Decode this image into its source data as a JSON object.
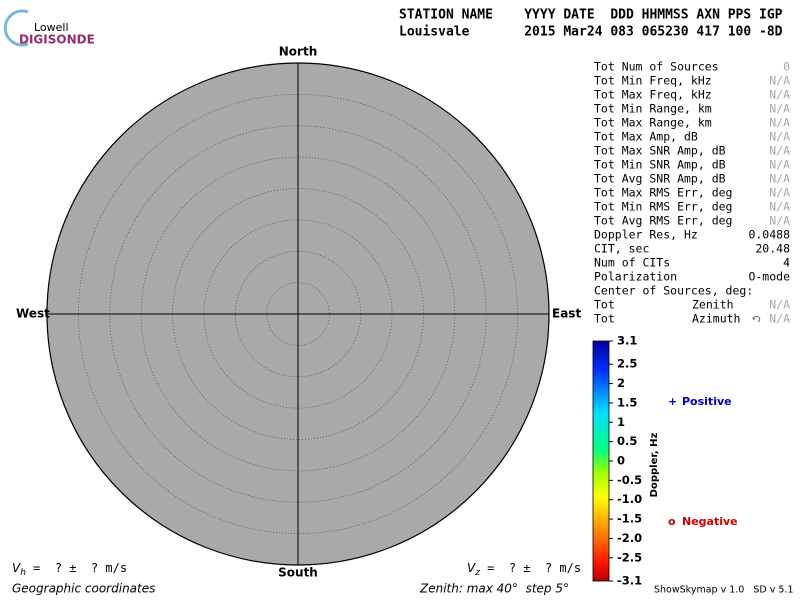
{
  "logo": {
    "top": "Lowell",
    "bottom": "DIGISONDE"
  },
  "header": {
    "line1": "STATION NAME    YYYY DATE  DDD HHMMSS AXN PPS IGP",
    "line2": "Louisvale       2015 Mar24 083 065230 417 100 -8D"
  },
  "compass": {
    "north": "North",
    "south": "South",
    "west": "West",
    "east": "East"
  },
  "stats": [
    {
      "label": "Tot Num of Sources",
      "value": 0,
      "color": "#a8a8a8"
    },
    {
      "label": "Tot Min Freq, kHz",
      "value": "N/A",
      "color": "#a8a8a8"
    },
    {
      "label": "Tot Max Freq, kHz",
      "value": "N/A",
      "color": "#a8a8a8"
    },
    {
      "label": "Tot Min Range, km",
      "value": "N/A",
      "color": "#a8a8a8"
    },
    {
      "label": "Tot Max Range, km",
      "value": "N/A",
      "color": "#a8a8a8"
    },
    {
      "label": "Tot Max Amp, dB",
      "value": "N/A",
      "color": "#a8a8a8"
    },
    {
      "label": "Tot Max SNR Amp, dB",
      "value": "N/A",
      "color": "#a8a8a8"
    },
    {
      "label": "Tot Min SNR Amp, dB",
      "value": "N/A",
      "color": "#a8a8a8"
    },
    {
      "label": "Tot Avg SNR Amp, dB",
      "value": "N/A",
      "color": "#a8a8a8"
    },
    {
      "label": "Tot Max RMS Err, deg",
      "value": "N/A",
      "color": "#a8a8a8"
    },
    {
      "label": "Tot Min RMS Err, deg",
      "value": "N/A",
      "color": "#a8a8a8"
    },
    {
      "label": "Tot Avg RMS Err, deg",
      "value": "N/A",
      "color": "#a8a8a8"
    },
    {
      "label": "Doppler Res, Hz",
      "value": 0.0488,
      "color": "#000000"
    },
    {
      "label": "CIT, sec",
      "value": 20.48,
      "color": "#000000"
    },
    {
      "label": "Num of CITs",
      "value": 4,
      "color": "#000000"
    },
    {
      "label": "Polarization",
      "value": "O-mode",
      "color": "#000000"
    },
    {
      "label": "Center of Sources, deg:"
    },
    {
      "label": "Tot",
      "sublabel": "Zenith",
      "value": "N/A",
      "color": "#a8a8a8"
    },
    {
      "label": "Tot",
      "sublabel": "Azimuth",
      "value": "N/A",
      "color": "#a8a8a8"
    }
  ],
  "colorbar": {
    "title": "Doppler, Hz",
    "lim": [
      -3.1,
      3.1
    ],
    "ticks": [
      3.1,
      2.5,
      2,
      1.5,
      1,
      0.5,
      0,
      -0.5,
      {
        "value": -1,
        "label": "-1.0"
      },
      -1.5,
      {
        "value": -2,
        "label": "-2.0"
      },
      -2.5,
      -3.1
    ]
  },
  "legend": {
    "positive": {
      "marker": "+",
      "label": "Positive",
      "color": "#0000c0"
    },
    "negative": {
      "marker": "o",
      "label": "Negative",
      "color": "#d00000"
    }
  },
  "velocity": {
    "vh": {
      "sym": "V",
      "sub": "h",
      "text": " =  ? ±  ? m/s"
    },
    "vz": {
      "sym": "V",
      "sub": "z",
      "text": " =  ? ±  ? m/s"
    }
  },
  "footer": {
    "coords": "Geographic coordinates",
    "zenith": "Zenith: max 40°  step 5°",
    "version": "ShowSkymap v 1.0   SD v 5.1"
  }
}
